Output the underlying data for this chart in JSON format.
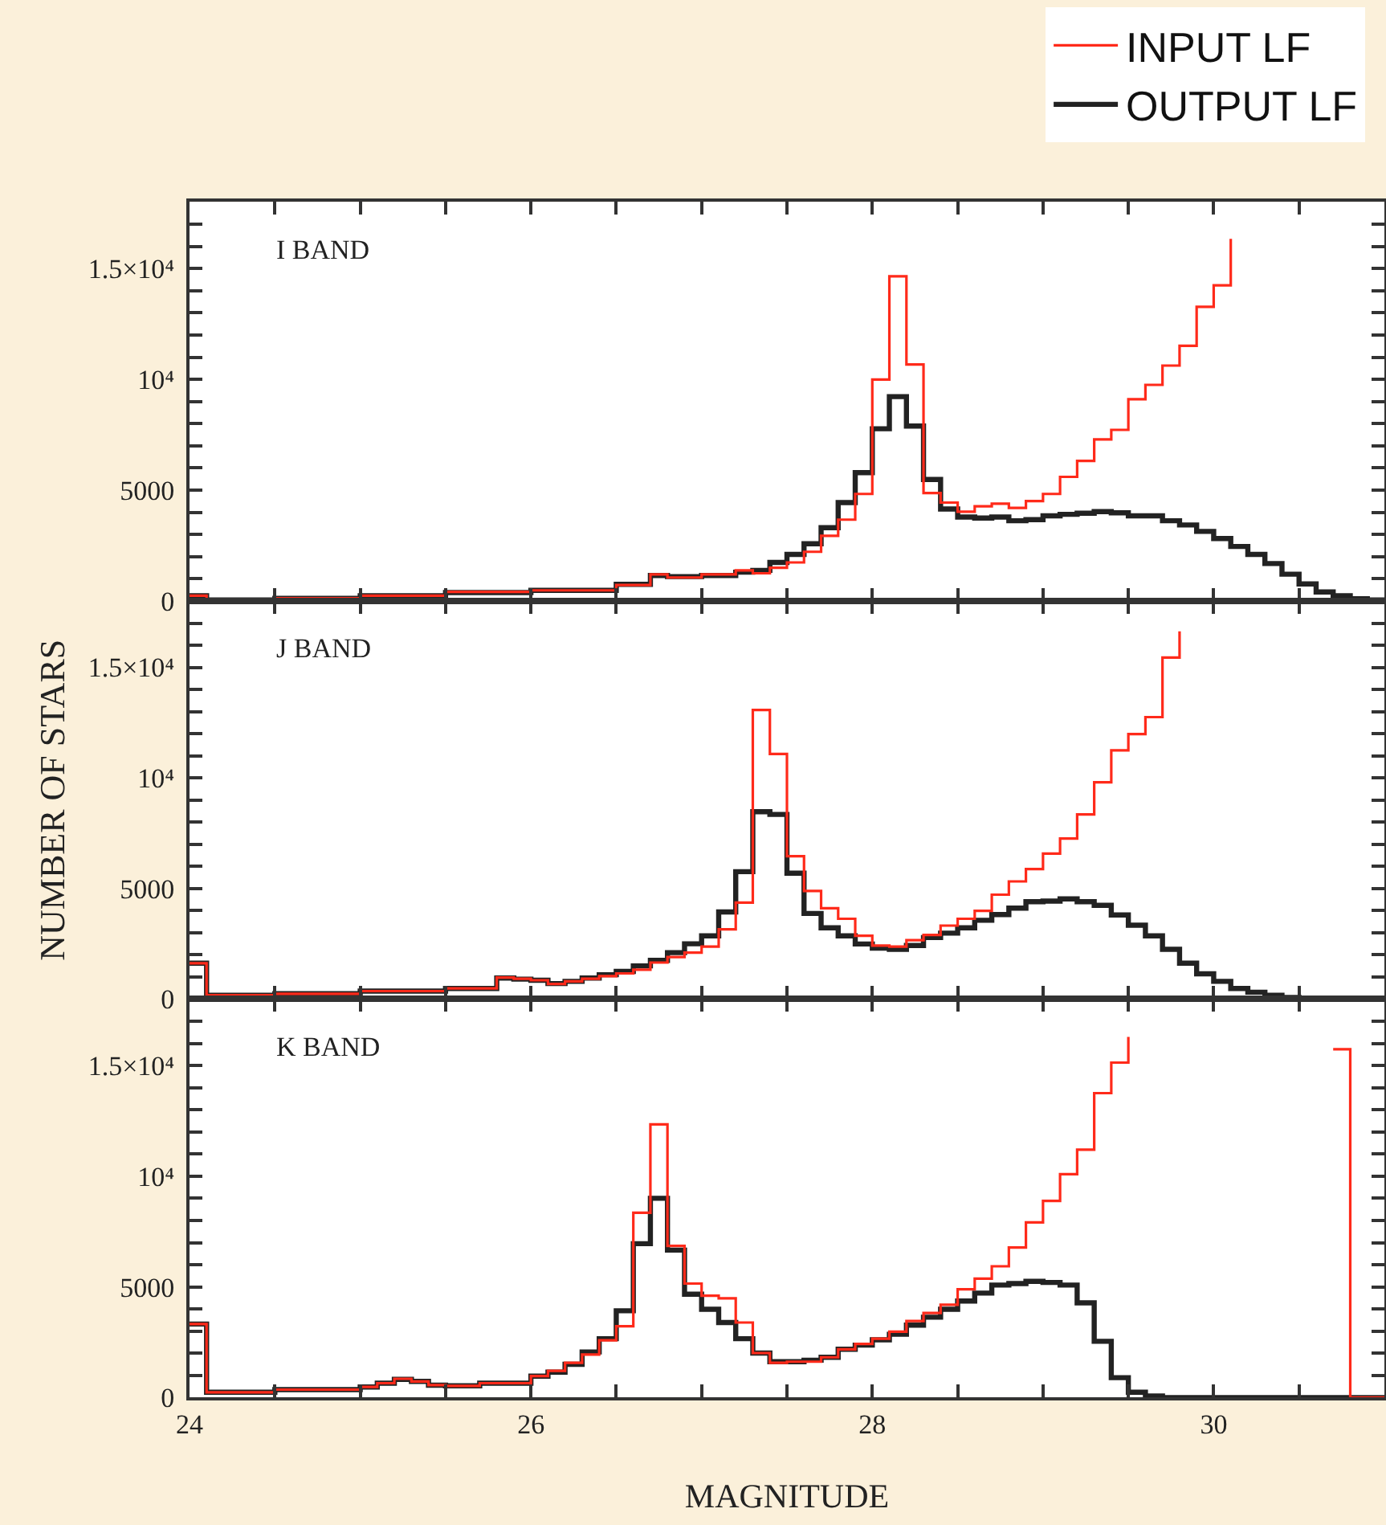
{
  "chart_data": [
    {
      "type": "step",
      "annotations": [
        "I BAND"
      ],
      "legend": "top right",
      "tick_labels": "y",
      "marker": "none",
      "line_style": "solid",
      "xlim": [
        24,
        31
      ],
      "xticks": [
        24,
        {
          "value": 24.5,
          "label": null
        },
        {
          "value": 25,
          "label": null
        },
        {
          "value": 25.5,
          "label": null
        },
        26,
        {
          "value": 26.5,
          "label": null
        },
        {
          "value": 27,
          "label": null
        },
        {
          "value": 27.5,
          "label": null
        },
        28,
        {
          "value": 28.5,
          "label": null
        },
        {
          "value": 29,
          "label": null
        },
        {
          "value": 29.5,
          "label": null
        },
        30,
        {
          "value": 30.5,
          "label": null
        }
      ],
      "ylim": [
        0,
        18000
      ],
      "yticks": [
        0,
        {
          "value": 1000,
          "label": null
        },
        {
          "value": 2000,
          "label": null
        },
        {
          "value": 3000,
          "label": null
        },
        {
          "value": 4000,
          "label": null
        },
        5000,
        {
          "value": 6000,
          "label": null
        },
        {
          "value": 7000,
          "label": null
        },
        {
          "value": 8000,
          "label": null
        },
        {
          "value": 9000,
          "label": null
        },
        {
          "value": 10000,
          "label": "10⁴"
        },
        {
          "value": 11000,
          "label": null
        },
        {
          "value": 12000,
          "label": null
        },
        {
          "value": 13000,
          "label": null
        },
        {
          "value": 14000,
          "label": null
        },
        {
          "value": 15000,
          "label": "1.5×10⁴"
        },
        {
          "value": 16000,
          "label": null
        },
        {
          "value": 17000,
          "label": null
        }
      ],
      "series": [
        {
          "name": "INPUT LF",
          "color": "#ff2a1a",
          "x": [
            24.0,
            24.1,
            24.5,
            25.0,
            25.5,
            26.0,
            26.5,
            26.7,
            26.8,
            27.0,
            27.2,
            27.3,
            27.4,
            27.5,
            27.6,
            27.7,
            27.8,
            27.9,
            28.0,
            28.1,
            28.2,
            28.3,
            28.4,
            28.5,
            28.6,
            28.7,
            28.8,
            28.9,
            29.0,
            29.1,
            29.2,
            29.3,
            29.4,
            29.5,
            29.6,
            29.7,
            29.8,
            29.9,
            30.0,
            30.1
          ],
          "values": [
            240,
            50,
            120,
            240,
            410,
            480,
            720,
            1200,
            1060,
            1200,
            1380,
            1250,
            1500,
            1740,
            2220,
            2940,
            3670,
            4830,
            9990,
            14650,
            10670,
            4870,
            4440,
            4030,
            4270,
            4390,
            4200,
            4510,
            4830,
            5600,
            6320,
            7290,
            7720,
            9100,
            9750,
            10620,
            11510,
            13270,
            14240,
            16340
          ]
        },
        {
          "name": "OUTPUT LF",
          "color": "#222222",
          "x": [
            24.0,
            24.1,
            24.5,
            25.0,
            25.5,
            26.0,
            26.5,
            26.7,
            26.8,
            27.0,
            27.2,
            27.3,
            27.4,
            27.5,
            27.6,
            27.7,
            27.8,
            27.9,
            28.0,
            28.1,
            28.2,
            28.3,
            28.4,
            28.5,
            28.6,
            28.7,
            28.8,
            28.9,
            29.0,
            29.1,
            29.2,
            29.3,
            29.4,
            29.5,
            29.6,
            29.7,
            29.8,
            29.9,
            30.0,
            30.1,
            30.2,
            30.3,
            30.4,
            30.5,
            30.6,
            30.7,
            30.8,
            30.9,
            31.0
          ],
          "values": [
            240,
            50,
            120,
            240,
            380,
            480,
            750,
            1150,
            1100,
            1150,
            1300,
            1380,
            1740,
            2100,
            2580,
            3310,
            4440,
            5790,
            7770,
            9220,
            7890,
            5480,
            4150,
            3790,
            3740,
            3790,
            3620,
            3670,
            3840,
            3910,
            3960,
            4030,
            3980,
            3840,
            3840,
            3620,
            3430,
            3140,
            2820,
            2460,
            2100,
            1690,
            1210,
            770,
            410,
            240,
            100,
            50,
            50
          ]
        }
      ]
    },
    {
      "type": "step",
      "annotations": [
        "J BAND"
      ],
      "ylabel": "NUMBER OF STARS",
      "tick_labels": "y",
      "marker": "none",
      "line_style": "solid",
      "xlim": [
        24,
        31
      ],
      "xticks": [
        24,
        {
          "value": 24.5,
          "label": null
        },
        {
          "value": 25,
          "label": null
        },
        {
          "value": 25.5,
          "label": null
        },
        26,
        {
          "value": 26.5,
          "label": null
        },
        {
          "value": 27,
          "label": null
        },
        {
          "value": 27.5,
          "label": null
        },
        28,
        {
          "value": 28.5,
          "label": null
        },
        {
          "value": 29,
          "label": null
        },
        {
          "value": 29.5,
          "label": null
        },
        30,
        {
          "value": 30.5,
          "label": null
        }
      ],
      "ylim": [
        0,
        18000
      ],
      "yticks": [
        0,
        {
          "value": 1000,
          "label": null
        },
        {
          "value": 2000,
          "label": null
        },
        {
          "value": 3000,
          "label": null
        },
        {
          "value": 4000,
          "label": null
        },
        5000,
        {
          "value": 6000,
          "label": null
        },
        {
          "value": 7000,
          "label": null
        },
        {
          "value": 8000,
          "label": null
        },
        {
          "value": 9000,
          "label": null
        },
        {
          "value": 10000,
          "label": "10⁴"
        },
        {
          "value": 11000,
          "label": null
        },
        {
          "value": 12000,
          "label": null
        },
        {
          "value": 13000,
          "label": null
        },
        {
          "value": 14000,
          "label": null
        },
        {
          "value": 15000,
          "label": "1.5×10⁴"
        },
        {
          "value": 16000,
          "label": null
        },
        {
          "value": 17000,
          "label": null
        }
      ],
      "series": [
        {
          "color": "#ff2a1a",
          "x": [
            24.0,
            24.1,
            24.5,
            25.0,
            25.5,
            25.8,
            25.9,
            26.0,
            26.1,
            26.2,
            26.3,
            26.4,
            26.5,
            26.6,
            26.7,
            26.8,
            26.9,
            27.0,
            27.1,
            27.2,
            27.3,
            27.4,
            27.5,
            27.6,
            27.7,
            27.8,
            27.9,
            28.0,
            28.1,
            28.2,
            28.3,
            28.4,
            28.5,
            28.6,
            28.7,
            28.8,
            28.9,
            29.0,
            29.1,
            29.2,
            29.3,
            29.4,
            29.5,
            29.6,
            29.7,
            29.8
          ],
          "values": [
            1620,
            170,
            240,
            360,
            480,
            970,
            920,
            850,
            680,
            800,
            920,
            1040,
            1160,
            1330,
            1650,
            1900,
            2100,
            2370,
            3150,
            4360,
            13070,
            11080,
            6460,
            4890,
            4110,
            3630,
            2860,
            2420,
            2370,
            2660,
            2900,
            3320,
            3630,
            3990,
            4720,
            5320,
            5880,
            6580,
            7260,
            8350,
            9800,
            11250,
            11980,
            12750,
            15440,
            16630
          ]
        },
        {
          "color": "#222222",
          "x": [
            24.0,
            24.1,
            24.5,
            25.0,
            25.5,
            25.8,
            25.9,
            26.0,
            26.1,
            26.2,
            26.3,
            26.4,
            26.5,
            26.6,
            26.7,
            26.8,
            26.9,
            27.0,
            27.1,
            27.2,
            27.3,
            27.4,
            27.5,
            27.6,
            27.7,
            27.8,
            27.9,
            28.0,
            28.1,
            28.2,
            28.3,
            28.4,
            28.5,
            28.6,
            28.7,
            28.8,
            28.9,
            29.0,
            29.1,
            29.2,
            29.3,
            29.4,
            29.5,
            29.6,
            29.7,
            29.8,
            29.9,
            30.0,
            30.1,
            30.2,
            30.3,
            30.4,
            30.5,
            30.6,
            31.0
          ],
          "values": [
            1620,
            170,
            240,
            360,
            480,
            950,
            900,
            850,
            700,
            800,
            950,
            1100,
            1250,
            1500,
            1750,
            2100,
            2500,
            2860,
            3940,
            5760,
            8470,
            8350,
            5690,
            3870,
            3220,
            2860,
            2490,
            2300,
            2250,
            2420,
            2780,
            2980,
            3220,
            3560,
            3820,
            4110,
            4400,
            4430,
            4530,
            4400,
            4240,
            3800,
            3340,
            2860,
            2250,
            1620,
            1140,
            800,
            480,
            310,
            170,
            70,
            20,
            0,
            0
          ]
        }
      ]
    },
    {
      "type": "step",
      "annotations": [
        "K BAND"
      ],
      "xlabel": "MAGNITUDE",
      "marker": "none",
      "line_style": "solid",
      "xlim": [
        24,
        31
      ],
      "xticks": [
        24,
        {
          "value": 24.5,
          "label": null
        },
        {
          "value": 25,
          "label": null
        },
        {
          "value": 25.5,
          "label": null
        },
        26,
        {
          "value": 26.5,
          "label": null
        },
        {
          "value": 27,
          "label": null
        },
        {
          "value": 27.5,
          "label": null
        },
        28,
        {
          "value": 28.5,
          "label": null
        },
        {
          "value": 29,
          "label": null
        },
        {
          "value": 29.5,
          "label": null
        },
        30,
        {
          "value": 30.5,
          "label": null
        }
      ],
      "ylim": [
        0,
        18000
      ],
      "yticks": [
        0,
        {
          "value": 1000,
          "label": null
        },
        {
          "value": 2000,
          "label": null
        },
        {
          "value": 3000,
          "label": null
        },
        {
          "value": 4000,
          "label": null
        },
        5000,
        {
          "value": 6000,
          "label": null
        },
        {
          "value": 7000,
          "label": null
        },
        {
          "value": 8000,
          "label": null
        },
        {
          "value": 9000,
          "label": null
        },
        {
          "value": 10000,
          "label": "10⁴"
        },
        {
          "value": 11000,
          "label": null
        },
        {
          "value": 12000,
          "label": null
        },
        {
          "value": 13000,
          "label": null
        },
        {
          "value": 14000,
          "label": null
        },
        {
          "value": 15000,
          "label": "1.5×10⁴"
        },
        {
          "value": 16000,
          "label": null
        },
        {
          "value": 17000,
          "label": null
        }
      ],
      "series": [
        {
          "color": "#ff2a1a",
          "x": [
            24.0,
            24.1,
            24.5,
            25.0,
            25.1,
            25.2,
            25.3,
            25.4,
            25.5,
            25.7,
            26.0,
            26.1,
            26.2,
            26.3,
            26.4,
            26.5,
            26.6,
            26.7,
            26.8,
            26.9,
            27.0,
            27.1,
            27.2,
            27.3,
            27.4,
            27.5,
            27.6,
            27.7,
            27.8,
            27.9,
            28.0,
            28.1,
            28.2,
            28.3,
            28.4,
            28.5,
            28.6,
            28.7,
            28.8,
            28.9,
            29.0,
            29.1,
            29.2,
            29.3,
            29.4,
            29.5,
            29.6,
            30.7,
            30.8,
            31.0
          ],
          "values": [
            3320,
            240,
            360,
            480,
            650,
            850,
            730,
            560,
            530,
            650,
            970,
            1210,
            1570,
            1940,
            2590,
            3220,
            8350,
            12340,
            6850,
            5150,
            4600,
            4480,
            3390,
            2010,
            1570,
            1620,
            1620,
            1820,
            2180,
            2420,
            2660,
            2980,
            3460,
            3820,
            4190,
            4890,
            5370,
            5930,
            6780,
            7910,
            8880,
            10090,
            11200,
            13750,
            15130,
            16290,
            null,
            15730,
            0,
            0
          ]
        },
        {
          "color": "#222222",
          "x": [
            24.0,
            24.1,
            24.5,
            25.0,
            25.1,
            25.2,
            25.3,
            25.4,
            25.5,
            25.7,
            26.0,
            26.1,
            26.2,
            26.3,
            26.4,
            26.5,
            26.6,
            26.7,
            26.8,
            26.9,
            27.0,
            27.1,
            27.2,
            27.3,
            27.4,
            27.5,
            27.6,
            27.7,
            27.8,
            27.9,
            28.0,
            28.1,
            28.2,
            28.3,
            28.4,
            28.5,
            28.6,
            28.7,
            28.8,
            28.9,
            29.0,
            29.1,
            29.2,
            29.3,
            29.4,
            29.5,
            29.6,
            29.7,
            31.0
          ],
          "values": [
            3320,
            240,
            360,
            480,
            650,
            820,
            730,
            560,
            530,
            650,
            970,
            1150,
            1500,
            2060,
            2660,
            3920,
            6950,
            9000,
            6660,
            4670,
            3990,
            3390,
            2660,
            2010,
            1620,
            1620,
            1690,
            1820,
            2180,
            2370,
            2610,
            2860,
            3270,
            3630,
            3990,
            4360,
            4720,
            5080,
            5150,
            5250,
            5200,
            5080,
            4280,
            2540,
            900,
            240,
            70,
            0,
            0
          ]
        }
      ]
    }
  ]
}
